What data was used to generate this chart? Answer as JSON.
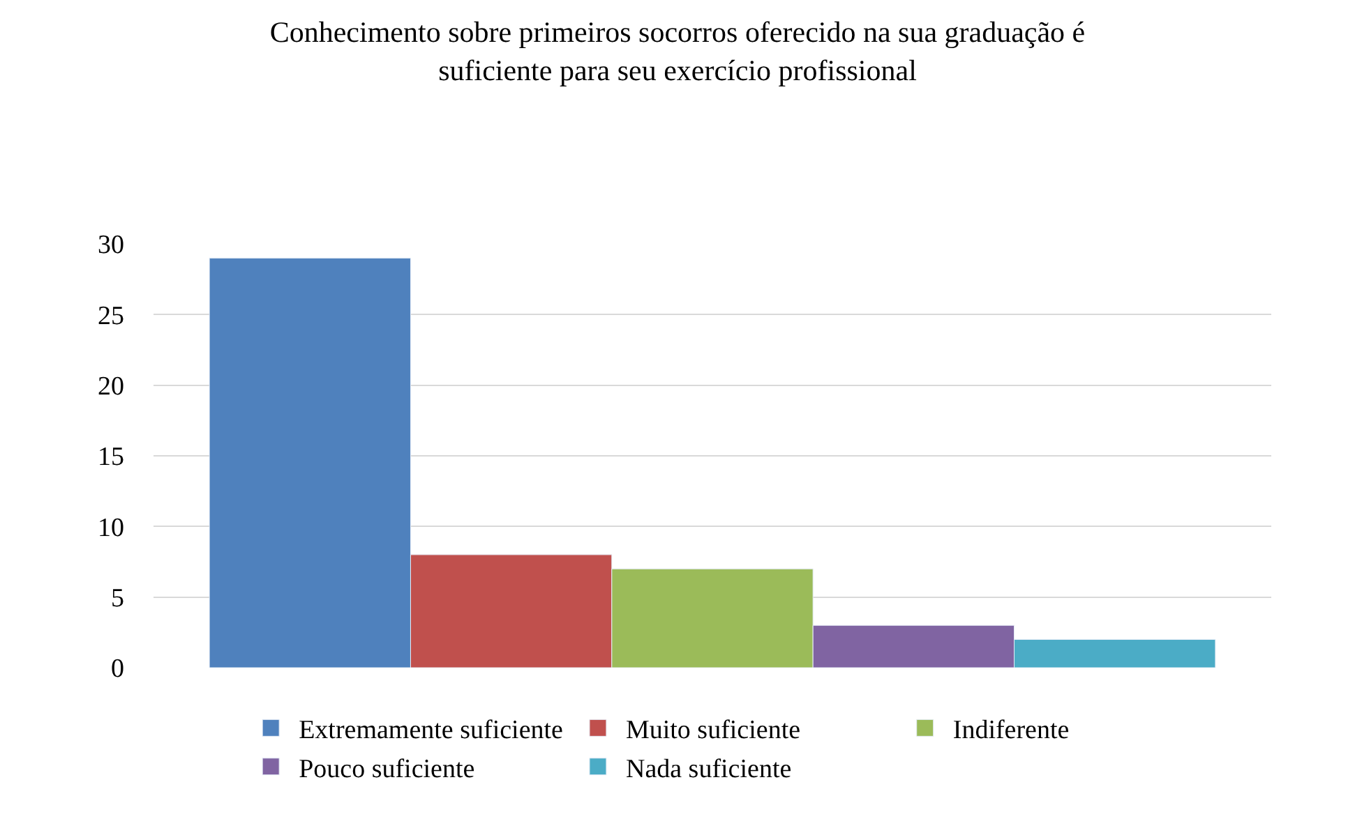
{
  "chart_data": {
    "type": "bar",
    "title": "Conhecimento sobre primeiros socorros oferecido na sua graduação é\nsuficiente para seu exercício profissional",
    "categories": [
      null
    ],
    "series": [
      {
        "name": "Extremamente suficiente",
        "color": "#4f81bd",
        "values": [
          29
        ]
      },
      {
        "name": "Muito suficiente",
        "color": "#c0504d",
        "values": [
          8
        ]
      },
      {
        "name": "Indiferente",
        "color": "#9bbb59",
        "values": [
          7
        ]
      },
      {
        "name": "Pouco suficiente",
        "color": "#8064a2",
        "values": [
          3
        ]
      },
      {
        "name": "Nada suficiente",
        "color": "#4bacc6",
        "values": [
          2
        ]
      }
    ],
    "ylim": [
      0,
      30
    ],
    "yticks": [
      0,
      5,
      10,
      15,
      20,
      25,
      30
    ],
    "grid": "y",
    "legend": "bottom"
  }
}
